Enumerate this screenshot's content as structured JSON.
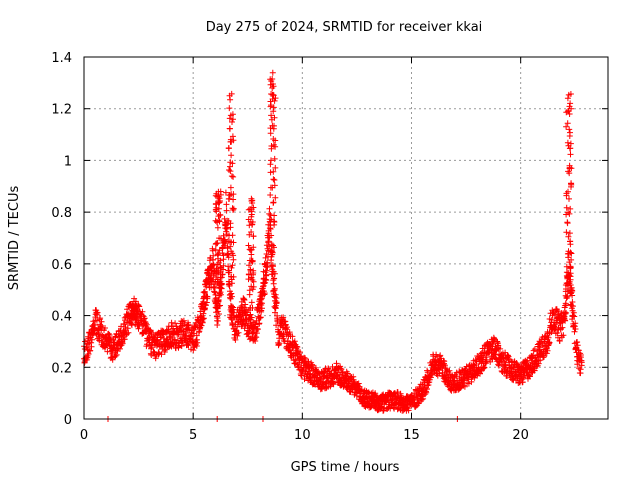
{
  "chart_data": {
    "type": "scatter",
    "title": "Day 275 of 2024, SRMTID for receiver kkai",
    "xlabel": "GPS time / hours",
    "ylabel": "SRMTID / TECUs",
    "xlim": [
      0,
      24
    ],
    "ylim": [
      0,
      1.4
    ],
    "grid": true,
    "marker": "+",
    "color": "#ff0000",
    "x_ticks": [
      0,
      5,
      10,
      15,
      20
    ],
    "x_tick_labels": [
      "0",
      "5",
      "10",
      "15",
      "20"
    ],
    "y_ticks": [
      0,
      0.2,
      0.4,
      0.6,
      0.8,
      1.0,
      1.2,
      1.4
    ],
    "y_tick_labels": [
      "0",
      "0.2",
      "0.4",
      "0.6",
      "0.8",
      "1",
      "1.2",
      "1.4"
    ],
    "series": [
      {
        "name": "SRMTID",
        "trend_x": [
          0,
          0.3,
          0.5,
          0.8,
          1.0,
          1.3,
          1.6,
          2.0,
          2.3,
          2.6,
          3.0,
          3.3,
          3.6,
          4.0,
          4.3,
          4.6,
          5.0,
          5.3,
          5.6,
          5.9,
          6.1,
          6.3,
          6.5,
          6.7,
          6.9,
          7.1,
          7.3,
          7.5,
          7.8,
          8.0,
          8.3,
          8.5,
          8.7,
          8.9,
          9.1,
          9.4,
          9.7,
          10.0,
          10.4,
          10.8,
          11.2,
          11.6,
          12.0,
          12.4,
          12.8,
          13.2,
          13.6,
          14.0,
          14.4,
          14.8,
          15.2,
          15.6,
          16.0,
          16.4,
          16.8,
          17.2,
          17.6,
          18.0,
          18.4,
          18.8,
          19.2,
          19.6,
          20.0,
          20.4,
          20.8,
          21.2,
          21.5,
          21.8,
          22.0,
          22.2,
          22.4,
          22.6,
          22.8
        ],
        "trend_y": [
          0.25,
          0.3,
          0.38,
          0.33,
          0.3,
          0.27,
          0.3,
          0.38,
          0.42,
          0.38,
          0.3,
          0.28,
          0.3,
          0.33,
          0.32,
          0.34,
          0.3,
          0.36,
          0.5,
          0.6,
          0.4,
          0.55,
          0.8,
          0.45,
          0.35,
          0.38,
          0.42,
          0.36,
          0.34,
          0.4,
          0.55,
          0.75,
          0.5,
          0.33,
          0.35,
          0.3,
          0.25,
          0.2,
          0.18,
          0.15,
          0.16,
          0.18,
          0.15,
          0.12,
          0.08,
          0.07,
          0.06,
          0.07,
          0.07,
          0.06,
          0.08,
          0.12,
          0.22,
          0.2,
          0.14,
          0.15,
          0.17,
          0.2,
          0.25,
          0.27,
          0.22,
          0.19,
          0.17,
          0.2,
          0.25,
          0.3,
          0.4,
          0.35,
          0.38,
          0.6,
          0.4,
          0.25,
          0.2
        ],
        "spread": 0.06,
        "spikes": [
          {
            "x": 6.15,
            "peak": 0.88
          },
          {
            "x": 6.75,
            "peak": 1.28
          },
          {
            "x": 7.65,
            "peak": 0.86
          },
          {
            "x": 8.65,
            "peak": 1.34
          },
          {
            "x": 22.2,
            "peak": 1.28
          }
        ],
        "zero_points_x": [
          1.1,
          6.1,
          8.2,
          17.1
        ]
      }
    ]
  }
}
